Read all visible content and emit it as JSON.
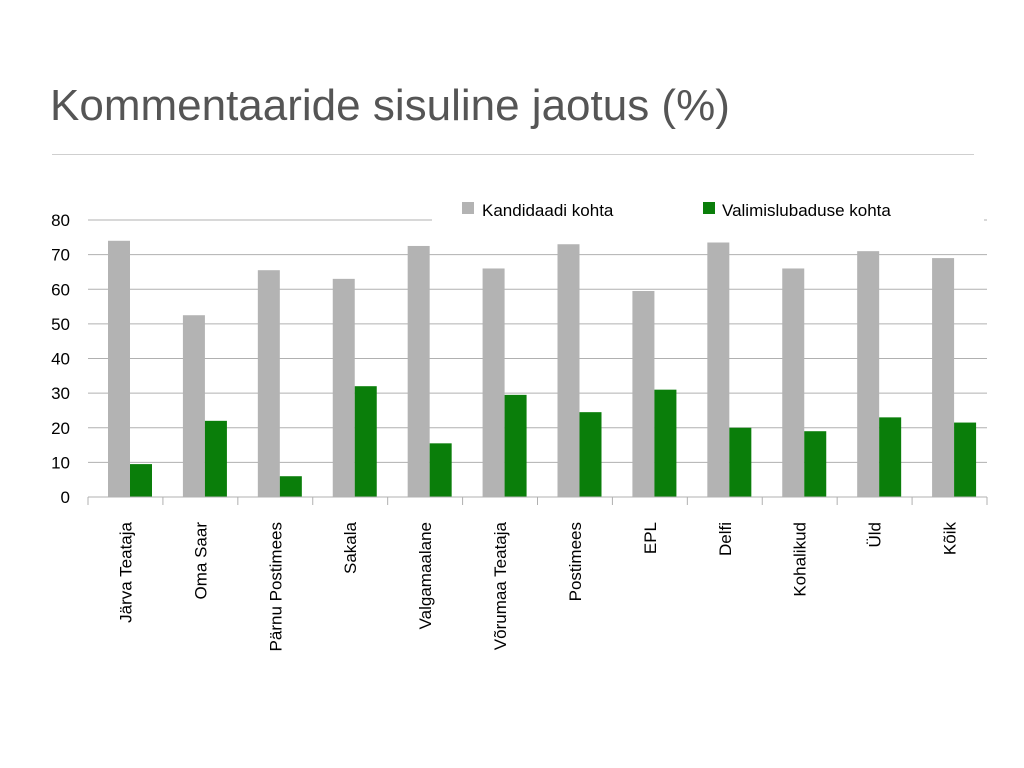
{
  "slide": {
    "title": "Kommentaaride sisuline jaotus (%)"
  },
  "colors": {
    "series_1": "#b3b3b3",
    "series_2": "#0a7e0a",
    "gridline": "#b0b0b0",
    "title_text": "#555555"
  },
  "chart_data": {
    "type": "bar",
    "title": "",
    "xlabel": "",
    "ylabel": "",
    "ylim": [
      0,
      80
    ],
    "yticks": [
      0,
      10,
      20,
      30,
      40,
      50,
      60,
      70,
      80
    ],
    "grid": true,
    "legend_position": "top-right",
    "categories": [
      "Järva Teataja",
      "Oma Saar",
      "Pärnu Postimees",
      "Sakala",
      "Valgamaalane",
      "Võrumaa Teataja",
      "Postimees",
      "EPL",
      "Delfi",
      "Kohalikud",
      "Üld",
      "Kõik"
    ],
    "series": [
      {
        "name": "Kandidaadi kohta",
        "color": "#b3b3b3",
        "values": [
          74,
          52.5,
          65.5,
          63,
          72.5,
          66,
          73,
          59.5,
          73.5,
          66,
          71,
          69
        ]
      },
      {
        "name": "Valimislubaduse kohta",
        "color": "#0a7e0a",
        "values": [
          9.5,
          22,
          6,
          32,
          15.5,
          29.5,
          24.5,
          31,
          20,
          19,
          23,
          21.5
        ]
      }
    ]
  }
}
